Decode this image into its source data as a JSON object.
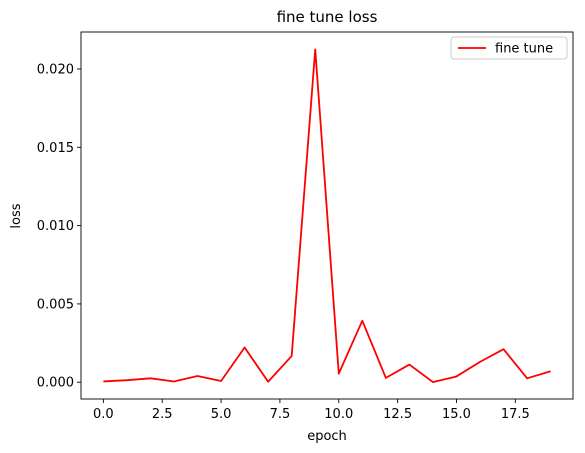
{
  "chart_data": {
    "type": "line",
    "title": "fine tune loss",
    "xlabel": "epoch",
    "ylabel": "loss",
    "xlim": [
      -0.95,
      19.95
    ],
    "ylim": [
      -0.00107,
      0.02236
    ],
    "x_ticks": [
      0.0,
      2.5,
      5.0,
      7.5,
      10.0,
      12.5,
      15.0,
      17.5
    ],
    "x_tick_labels": [
      "0.0",
      "2.5",
      "5.0",
      "7.5",
      "10.0",
      "12.5",
      "15.0",
      "17.5"
    ],
    "y_ticks": [
      0.0,
      0.005,
      0.01,
      0.015,
      0.02
    ],
    "y_tick_labels": [
      "0.000",
      "0.005",
      "0.010",
      "0.015",
      "0.020"
    ],
    "grid": false,
    "legend_position": "top-right",
    "series": [
      {
        "name": "fine tune",
        "color": "#ff0000",
        "x": [
          0,
          1,
          2,
          3,
          4,
          5,
          6,
          7,
          8,
          9,
          10,
          11,
          12,
          13,
          14,
          15,
          16,
          17,
          18,
          19
        ],
        "y": [
          5e-05,
          0.00013,
          0.00025,
          5e-05,
          0.0004,
          8e-05,
          0.00222,
          3e-05,
          0.00168,
          0.02125,
          0.00055,
          0.00393,
          0.00028,
          0.00113,
          1e-05,
          0.00037,
          0.0013,
          0.00211,
          0.00025,
          0.0007
        ]
      }
    ]
  }
}
